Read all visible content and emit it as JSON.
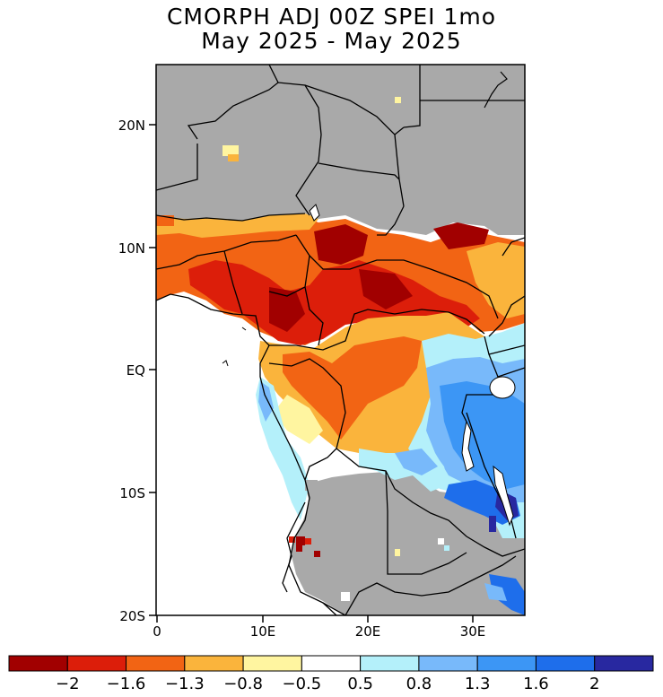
{
  "title": {
    "line1": "CMORPH ADJ 00Z SPEI 1mo",
    "line2": "May 2025 - May 2025"
  },
  "map": {
    "lat_ticks": [
      "20N",
      "10N",
      "EQ",
      "10S",
      "20S"
    ],
    "lon_ticks": [
      "0",
      "10E",
      "20E",
      "30E"
    ],
    "land_color": "#a9a9a9",
    "ocean_color": "#ffffff"
  },
  "colorbar": {
    "colors": [
      "#a10000",
      "#dc1e0a",
      "#f26414",
      "#fab43c",
      "#fff5a0",
      "#ffffff",
      "#b4f0fa",
      "#78b9fa",
      "#3c96f5",
      "#1e6eeb",
      "#2828a0"
    ],
    "labels": [
      "-2",
      "-1.6",
      "-1.3",
      "-0.8",
      "-0.5",
      "0.5",
      "0.8",
      "1.3",
      "1.6",
      "2"
    ]
  }
}
